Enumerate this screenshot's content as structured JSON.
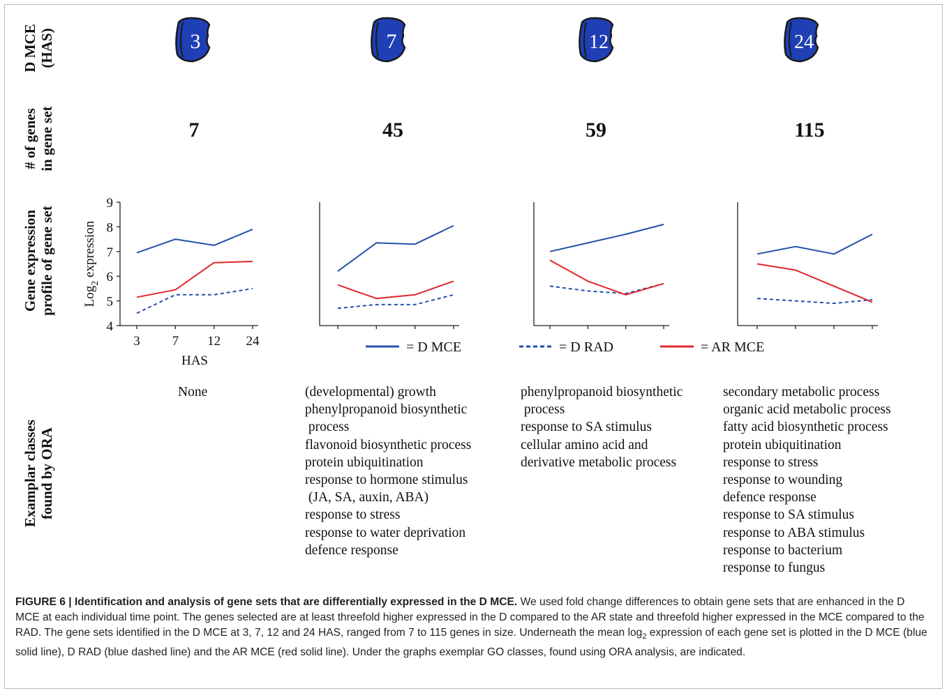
{
  "row_labels": {
    "seed": [
      "D MCE",
      "(HAS)"
    ],
    "genes": [
      "# of genes",
      "in gene set"
    ],
    "profile": [
      "Gene expression",
      "profile of gene set"
    ],
    "classes": [
      "Examplar classes",
      "found by ORA"
    ]
  },
  "panels": [
    {
      "time": "3",
      "count": "7",
      "go_classes": [
        "None"
      ]
    },
    {
      "time": "7",
      "count": "45",
      "go_classes": [
        "(developmental) growth",
        "phenylpropanoid biosynthetic",
        " process",
        "flavonoid biosynthetic process",
        "protein ubiquitination",
        "response to hormone stimulus",
        " (JA, SA, auxin, ABA)",
        "response to stress",
        "response to water deprivation",
        "defence response"
      ]
    },
    {
      "time": "12",
      "count": "59",
      "go_classes": [
        "phenylpropanoid biosynthetic",
        " process",
        "response to SA stimulus",
        "cellular amino acid and",
        "derivative metabolic process"
      ]
    },
    {
      "time": "24",
      "count": "115",
      "go_classes": [
        "secondary metabolic process",
        "organic acid metabolic process",
        "fatty acid biosynthetic process",
        "protein ubiquitination",
        "response to stress",
        "response to wounding",
        "defence response",
        "response to SA stimulus",
        "response to ABA stimulus",
        "response to bacterium",
        "response to fungus"
      ]
    }
  ],
  "legend": {
    "d_mce": "= D MCE",
    "d_rad": "= D RAD",
    "ar_mce": "= AR MCE"
  },
  "colors": {
    "d_mce": "#2350a8",
    "d_rad": "#2350a8",
    "ar_mce": "#e0262b",
    "seed_fill": "#1f3fb5",
    "seed_stroke": "#1a1a1a"
  },
  "caption": {
    "label": "FIGURE 6 | Identification and analysis of gene sets that are differentially expressed in the D MCE.",
    "text_1": " We used fold change differences to obtain gene sets that are enhanced in the D MCE at each individual time point. The genes selected are at least threefold higher expressed in the D compared to the AR state and threefold higher expressed in the MCE compared to the RAD. The gene sets identified in the D MCE at 3, 7, 12 and 24 HAS, ranged from 7 to 115 genes in size. Underneath the mean log",
    "sub": "2",
    "text_2": " expression of each gene set is plotted in the D MCE (blue solid line), D RAD (blue dashed line) and the AR MCE (red solid line). Under the graphs exemplar GO classes, found using ORA analysis, are indicated."
  },
  "chart_data": [
    {
      "type": "line",
      "x": [
        "3",
        "7",
        "12",
        "24"
      ],
      "xlabel": "HAS",
      "ylabel": "Log2 expression",
      "ylim": [
        4,
        9
      ],
      "yticks": [
        4,
        5,
        6,
        7,
        8,
        9
      ],
      "series": [
        {
          "name": "D MCE",
          "values": [
            6.95,
            7.5,
            7.25,
            7.9
          ]
        },
        {
          "name": "D RAD",
          "values": [
            4.5,
            5.25,
            5.25,
            5.5
          ]
        },
        {
          "name": "AR MCE",
          "values": [
            5.15,
            5.45,
            6.55,
            6.6
          ]
        }
      ]
    },
    {
      "type": "line",
      "x": [
        "3",
        "7",
        "12",
        "24"
      ],
      "ylim": [
        4,
        9
      ],
      "series": [
        {
          "name": "D MCE",
          "values": [
            6.2,
            7.35,
            7.3,
            8.05
          ]
        },
        {
          "name": "D RAD",
          "values": [
            4.7,
            4.85,
            4.85,
            5.25
          ]
        },
        {
          "name": "AR MCE",
          "values": [
            5.65,
            5.1,
            5.25,
            5.8
          ]
        }
      ]
    },
    {
      "type": "line",
      "x": [
        "3",
        "7",
        "12",
        "24"
      ],
      "ylim": [
        4,
        9
      ],
      "series": [
        {
          "name": "D MCE",
          "values": [
            7.0,
            7.35,
            7.7,
            8.1
          ]
        },
        {
          "name": "D RAD",
          "values": [
            5.6,
            5.4,
            5.3,
            5.7
          ]
        },
        {
          "name": "AR MCE",
          "values": [
            6.65,
            5.8,
            5.25,
            5.7
          ]
        }
      ]
    },
    {
      "type": "line",
      "x": [
        "3",
        "7",
        "12",
        "24"
      ],
      "ylim": [
        4,
        9
      ],
      "series": [
        {
          "name": "D MCE",
          "values": [
            6.9,
            7.2,
            6.9,
            7.7
          ]
        },
        {
          "name": "D RAD",
          "values": [
            5.1,
            5.0,
            4.9,
            5.05
          ]
        },
        {
          "name": "AR MCE",
          "values": [
            6.5,
            6.25,
            5.6,
            4.95
          ]
        }
      ]
    }
  ]
}
